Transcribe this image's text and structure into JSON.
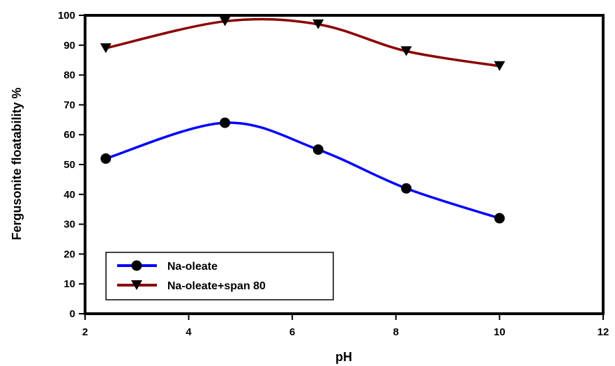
{
  "chart_data": {
    "type": "line",
    "xlabel": "pH",
    "ylabel": "Fergusonite floatability %",
    "xlim": [
      2,
      12
    ],
    "ylim": [
      0,
      100
    ],
    "xticks": [
      2,
      4,
      6,
      8,
      10,
      12
    ],
    "yticks": [
      0,
      10,
      20,
      30,
      40,
      50,
      60,
      70,
      80,
      90,
      100
    ],
    "grid": false,
    "legend_position": "bottom-left",
    "series": [
      {
        "name": "Na-oleate",
        "marker": "circle",
        "color": "#0000ff",
        "x": [
          2.4,
          4.7,
          6.5,
          8.2,
          10
        ],
        "y": [
          52,
          64,
          55,
          42,
          32
        ]
      },
      {
        "name": "Na-oleate+span 80",
        "marker": "triangle-down",
        "color": "#8b0000",
        "x": [
          2.4,
          4.7,
          6.5,
          8.2,
          10
        ],
        "y": [
          89,
          98,
          97,
          88,
          83
        ]
      }
    ]
  }
}
